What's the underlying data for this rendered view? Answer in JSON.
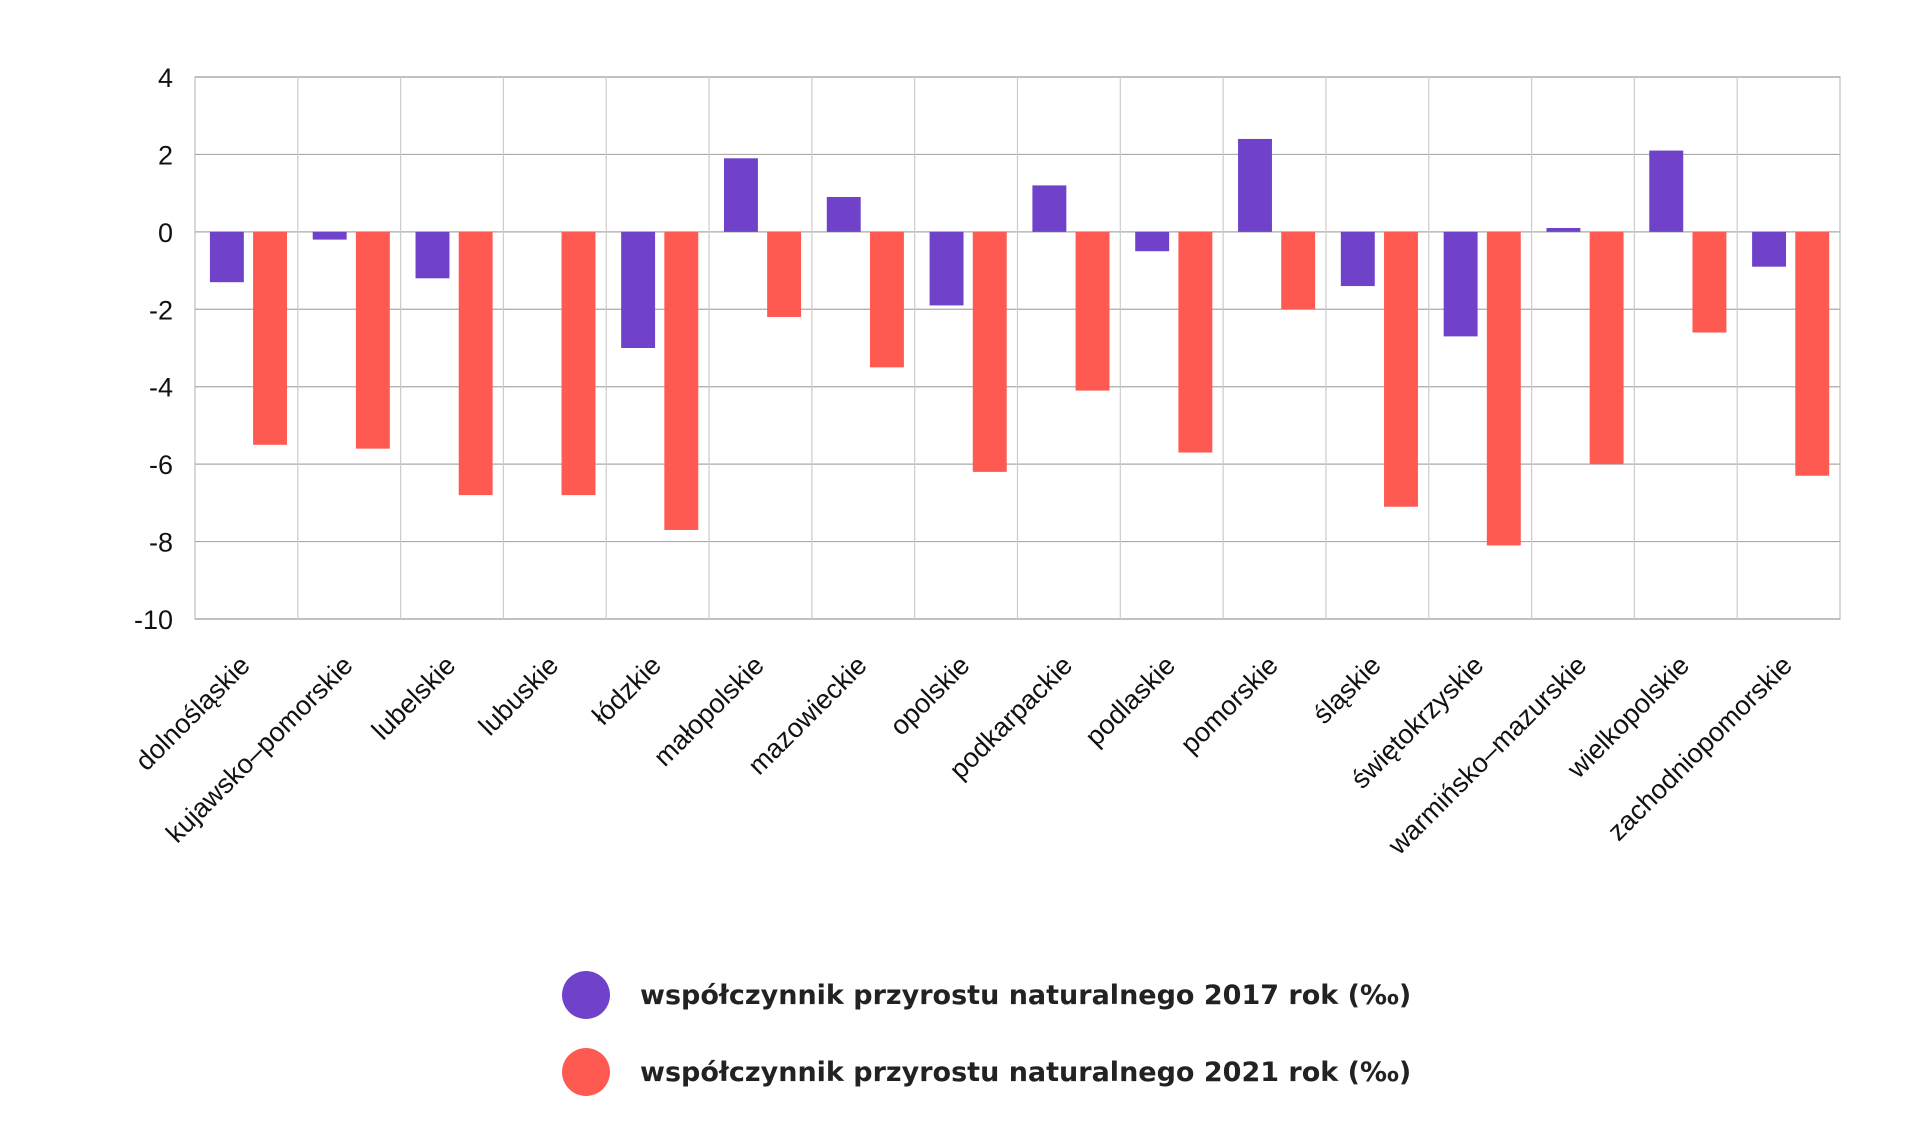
{
  "chart_data": {
    "type": "bar",
    "categories": [
      "dolnośląskie",
      "kujawsko–pomorskie",
      "lubelskie",
      "lubuskie",
      "łódzkie",
      "małopolskie",
      "mazowieckie",
      "opolskie",
      "podkarpackie",
      "podlaskie",
      "pomorskie",
      "śląskie",
      "świętokrzyskie",
      "warmińsko–mazurskie",
      "wielkopolskie",
      "zachodniopomorskie"
    ],
    "series": [
      {
        "name": "współczynnik przyrostu naturalnego 2017 rok (‰)",
        "color": "#6f42c9",
        "values": [
          -1.3,
          -0.2,
          -1.2,
          0,
          -3.0,
          1.9,
          0.9,
          -1.9,
          1.2,
          -0.5,
          2.4,
          -1.4,
          -2.7,
          0.1,
          2.1,
          -0.9
        ]
      },
      {
        "name": "współczynnik przyrostu naturalnego 2021 rok (‰)",
        "color": "#ff5a52",
        "values": [
          -5.5,
          -5.6,
          -6.8,
          -6.8,
          -7.7,
          -2.2,
          -3.5,
          -6.2,
          -4.1,
          -5.7,
          -2.0,
          -7.1,
          -8.1,
          -6.0,
          -2.6,
          -6.3
        ]
      }
    ],
    "yticks": [
      4,
      2,
      0,
      -2,
      -4,
      -6,
      -8,
      -10
    ],
    "ylim": [
      -10,
      4
    ],
    "grid": true,
    "legend": "bottom",
    "title": "",
    "xlabel": "",
    "ylabel": ""
  }
}
